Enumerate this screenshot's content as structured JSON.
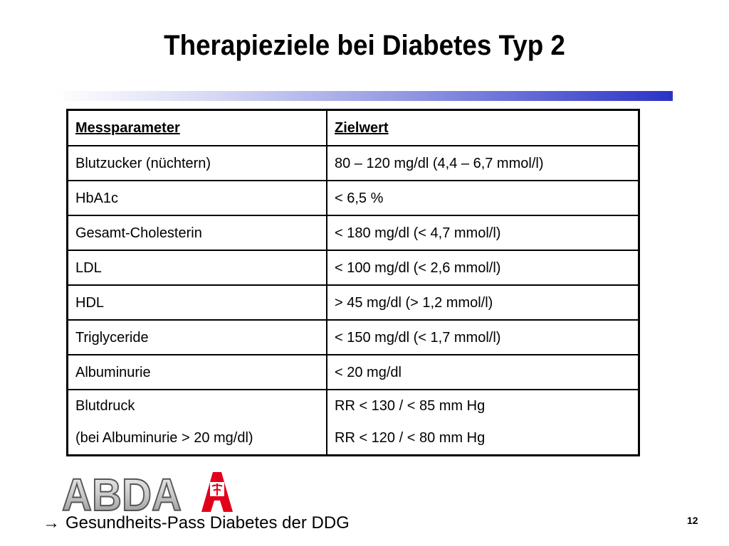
{
  "slide": {
    "title": "Therapieziele bei Diabetes Typ 2",
    "page_number": "12"
  },
  "table": {
    "headers": [
      "Messparameter",
      "Zielwert"
    ],
    "rows": [
      [
        "Blutzucker (nüchtern)",
        "80 – 120 mg/dl (4,4 – 6,7 mmol/l)"
      ],
      [
        "HbA1c",
        "< 6,5 %"
      ],
      [
        "Gesamt-Cholesterin",
        "< 180 mg/dl (< 4,7 mmol/l)"
      ],
      [
        "LDL",
        "< 100 mg/dl (< 2,6 mmol/l)"
      ],
      [
        "HDL",
        "> 45 mg/dl (> 1,2 mmol/l)"
      ],
      [
        "Triglyceride",
        "< 150 mg/dl (< 1,7 mmol/l)"
      ],
      [
        "Albuminurie",
        "< 20 mg/dl"
      ]
    ],
    "last_row": {
      "param_line1": "Blutdruck",
      "param_line2": "(bei Albuminurie > 20 mg/dl)",
      "value_line1": "RR < 130 / < 85 mm Hg",
      "value_line2": "RR < 120 / < 80 mm Hg"
    }
  },
  "logo": {
    "text": "ABDA",
    "icon": "apotheke-a-logo-icon",
    "accent": "#e2001a"
  },
  "footnote": {
    "arrow": "→",
    "text": "Gesundheits-Pass Diabetes der DDG"
  }
}
